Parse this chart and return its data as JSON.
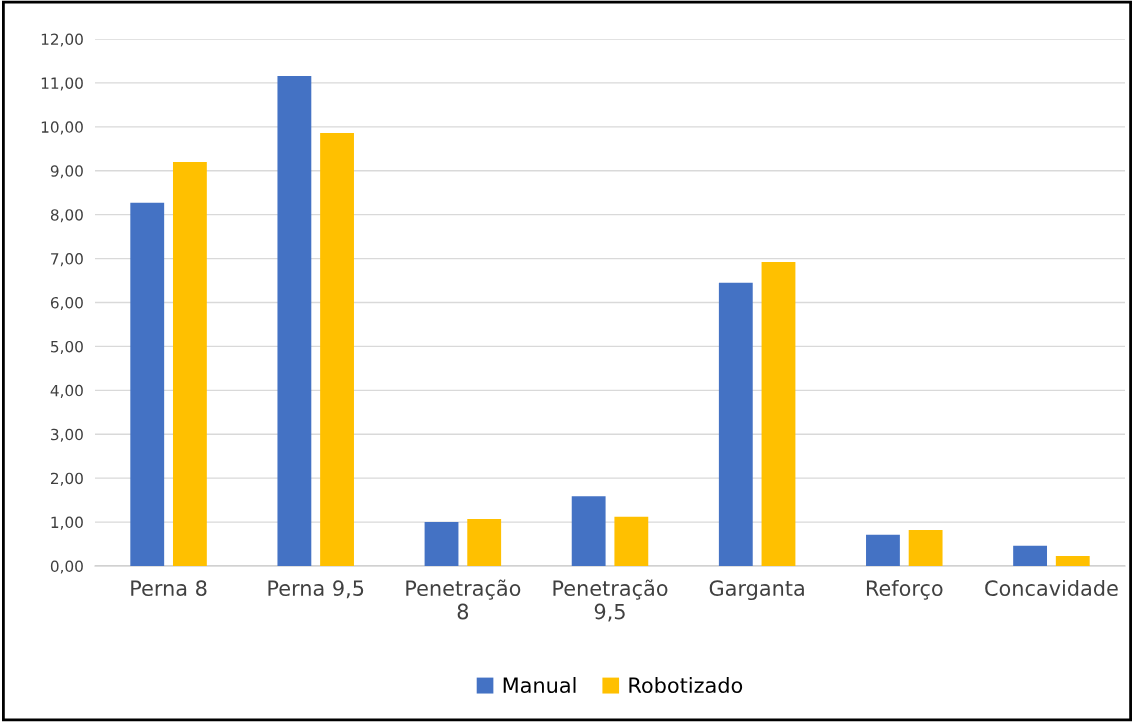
{
  "chart_data": {
    "type": "bar",
    "categories": [
      "Perna 8",
      "Perna 9,5",
      "Penetração\n8",
      "Penetração\n9,5",
      "Garganta",
      "Reforço",
      "Concavidade"
    ],
    "series": [
      {
        "name": "Manual",
        "color": "#4472c4",
        "values": [
          8.27,
          11.16,
          1.0,
          1.59,
          6.45,
          0.71,
          0.46
        ]
      },
      {
        "name": "Robotizado",
        "color": "#ffc000",
        "values": [
          9.2,
          9.86,
          1.07,
          1.12,
          6.92,
          0.82,
          0.23
        ]
      }
    ],
    "ylim": [
      0,
      12
    ],
    "yticks": [
      {
        "value": 0,
        "label": "0,00"
      },
      {
        "value": 1,
        "label": "1,00"
      },
      {
        "value": 2,
        "label": "2,00"
      },
      {
        "value": 3,
        "label": "3,00"
      },
      {
        "value": 4,
        "label": "4,00"
      },
      {
        "value": 5,
        "label": "5,00"
      },
      {
        "value": 6,
        "label": "6,00"
      },
      {
        "value": 7,
        "label": "7,00"
      },
      {
        "value": 8,
        "label": "8,00"
      },
      {
        "value": 9,
        "label": "9,00"
      },
      {
        "value": 10,
        "label": "10,00"
      },
      {
        "value": 11,
        "label": "11,00"
      },
      {
        "value": 12,
        "label": "12,00"
      }
    ],
    "grid": "y",
    "legend": "bottom"
  }
}
